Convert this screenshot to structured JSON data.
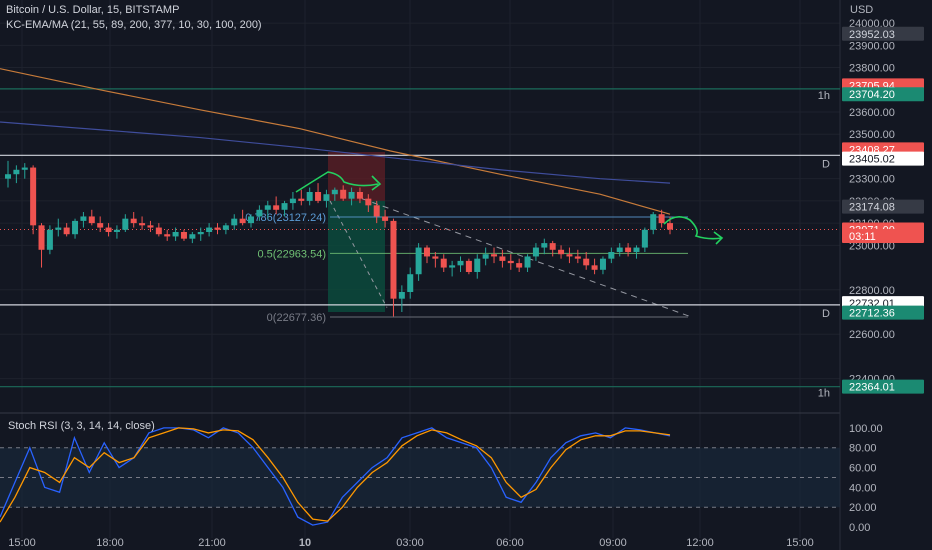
{
  "header": {
    "title": "Bitcoin / U.S. Dollar, 15, BITSTAMP",
    "indicator": "KC-EMA/MA (21, 55, 89, 200, 377, 10, 30, 100, 200)",
    "currency": "USD",
    "rsi_title": "Stoch RSI (3, 3, 14, 14, close)"
  },
  "colors": {
    "background": "#131722",
    "up": "#26a69a",
    "down": "#ef5350",
    "ma_orange": "#c77b3a",
    "ma_blue": "#3f4d9c",
    "arrow": "#23d160",
    "rsi_k": "#2962ff",
    "rsi_d": "#ff9800"
  },
  "chart_data": [
    {
      "type": "candlestick",
      "title": "Bitcoin / U.S. Dollar, 15, BITSTAMP",
      "ylim": [
        22250,
        24050
      ],
      "y_ticks": [
        22400,
        22600,
        22800,
        23000,
        23100,
        23200,
        23300,
        23500,
        23600,
        23800,
        23900,
        24000
      ],
      "y_tick_labels": [
        "22400.00",
        "22600.00",
        "22800.00",
        "23000.00",
        "23100.00",
        "23200.00",
        "23300.00",
        "23500.00",
        "23600.00",
        "23800.00",
        "23900.00",
        "24000.00"
      ],
      "x_ticks": [
        "15:00",
        "18:00",
        "21:00",
        "10",
        "03:00",
        "06:00",
        "09:00",
        "12:00",
        "15:00"
      ],
      "candles": [
        [
          23300,
          23380,
          23260,
          23320
        ],
        [
          23320,
          23360,
          23280,
          23340
        ],
        [
          23340,
          23370,
          23300,
          23350
        ],
        [
          23350,
          23360,
          23050,
          23090
        ],
        [
          23090,
          23100,
          22900,
          22980
        ],
        [
          22980,
          23090,
          22960,
          23070
        ],
        [
          23070,
          23120,
          23040,
          23080
        ],
        [
          23080,
          23100,
          23040,
          23050
        ],
        [
          23050,
          23120,
          23030,
          23110
        ],
        [
          23110,
          23150,
          23080,
          23130
        ],
        [
          23130,
          23160,
          23090,
          23100
        ],
        [
          23100,
          23130,
          23060,
          23080
        ],
        [
          23080,
          23100,
          23040,
          23060
        ],
        [
          23060,
          23090,
          23030,
          23070
        ],
        [
          23070,
          23140,
          23060,
          23120
        ],
        [
          23120,
          23150,
          23080,
          23100
        ],
        [
          23100,
          23130,
          23070,
          23090
        ],
        [
          23090,
          23110,
          23060,
          23080
        ],
        [
          23080,
          23100,
          23040,
          23050
        ],
        [
          23050,
          23070,
          23020,
          23040
        ],
        [
          23040,
          23080,
          23020,
          23060
        ],
        [
          23060,
          23070,
          23020,
          23030
        ],
        [
          23030,
          23060,
          23010,
          23050
        ],
        [
          23050,
          23080,
          23020,
          23060
        ],
        [
          23060,
          23100,
          23040,
          23080
        ],
        [
          23080,
          23100,
          23050,
          23070
        ],
        [
          23070,
          23100,
          23050,
          23090
        ],
        [
          23090,
          23140,
          23070,
          23120
        ],
        [
          23120,
          23160,
          23090,
          23100
        ],
        [
          23100,
          23140,
          23080,
          23130
        ],
        [
          23130,
          23180,
          23110,
          23160
        ],
        [
          23160,
          23200,
          23120,
          23180
        ],
        [
          23180,
          23220,
          23140,
          23160
        ],
        [
          23160,
          23200,
          23130,
          23190
        ],
        [
          23190,
          23240,
          23160,
          23210
        ],
        [
          23210,
          23250,
          23180,
          23200
        ],
        [
          23200,
          23260,
          23180,
          23240
        ],
        [
          23240,
          23280,
          23190,
          23200
        ],
        [
          23200,
          23250,
          23170,
          23230
        ],
        [
          23230,
          23260,
          23200,
          23250
        ],
        [
          23250,
          23270,
          23200,
          23210
        ],
        [
          23210,
          23260,
          23180,
          23240
        ],
        [
          23240,
          23260,
          23190,
          23210
        ],
        [
          23210,
          23230,
          23150,
          23180
        ],
        [
          23180,
          23200,
          23100,
          23130
        ],
        [
          23130,
          23160,
          23080,
          23110
        ],
        [
          23110,
          23120,
          22680,
          22760
        ],
        [
          22760,
          22820,
          22700,
          22790
        ],
        [
          22790,
          22900,
          22760,
          22870
        ],
        [
          22870,
          23010,
          22840,
          22990
        ],
        [
          22990,
          23000,
          22920,
          22950
        ],
        [
          22950,
          22970,
          22900,
          22940
        ],
        [
          22940,
          22960,
          22880,
          22900
        ],
        [
          22900,
          22930,
          22860,
          22910
        ],
        [
          22910,
          22950,
          22880,
          22930
        ],
        [
          22930,
          22940,
          22870,
          22880
        ],
        [
          22880,
          22960,
          22850,
          22940
        ],
        [
          22940,
          22990,
          22910,
          22960
        ],
        [
          22960,
          22990,
          22920,
          22950
        ],
        [
          22950,
          22980,
          22900,
          22930
        ],
        [
          22930,
          22960,
          22890,
          22920
        ],
        [
          22920,
          22940,
          22880,
          22900
        ],
        [
          22900,
          22960,
          22880,
          22950
        ],
        [
          22950,
          23010,
          22930,
          22990
        ],
        [
          22990,
          23030,
          22960,
          23010
        ],
        [
          23010,
          23020,
          22950,
          22980
        ],
        [
          22980,
          23000,
          22940,
          22960
        ],
        [
          22960,
          22990,
          22920,
          22950
        ],
        [
          22950,
          22980,
          22920,
          22940
        ],
        [
          22940,
          22970,
          22890,
          22910
        ],
        [
          22910,
          22940,
          22870,
          22890
        ],
        [
          22890,
          22950,
          22870,
          22940
        ],
        [
          22940,
          22990,
          22920,
          22970
        ],
        [
          22970,
          23010,
          22950,
          22990
        ],
        [
          22990,
          23010,
          22950,
          22970
        ],
        [
          22970,
          23000,
          22940,
          22990
        ],
        [
          22990,
          23080,
          22970,
          23070
        ],
        [
          23070,
          23150,
          23050,
          23140
        ],
        [
          23140,
          23160,
          23080,
          23100
        ],
        [
          23100,
          23130,
          23050,
          23071
        ]
      ],
      "moving_averages": [
        {
          "color": "#c77b3a",
          "points": [
            [
              0,
              23795
            ],
            [
              100,
              23700
            ],
            [
              200,
              23610
            ],
            [
              300,
              23525
            ],
            [
              390,
              23425
            ],
            [
              500,
              23320
            ],
            [
              600,
              23230
            ],
            [
              670,
              23140
            ]
          ]
        },
        {
          "color": "#3f4d9c",
          "points": [
            [
              0,
              23555
            ],
            [
              100,
              23520
            ],
            [
              200,
              23485
            ],
            [
              300,
              23440
            ],
            [
              400,
              23390
            ],
            [
              500,
              23340
            ],
            [
              600,
              23300
            ],
            [
              670,
              23280
            ]
          ]
        }
      ],
      "horizontal_levels": [
        {
          "price": 23704.2,
          "label": "1h",
          "color": "#1b6b5a"
        },
        {
          "price": 23405.02,
          "label": "D",
          "color": "#d1d4dc"
        },
        {
          "price": 22732.01,
          "label": "D",
          "color": "#d1d4dc"
        },
        {
          "price": 22364.01,
          "label": "1h",
          "color": "#1b6b5a"
        }
      ],
      "fib_levels": [
        {
          "ratio_text": "0.786(23127.24)",
          "price": 23127.24,
          "color": "#5b9bd5"
        },
        {
          "ratio_text": "0.5(22963.54)",
          "price": 22963.54,
          "color": "#6fbf73"
        },
        {
          "ratio_text": "0(22677.36)",
          "price": 22677.36,
          "color": "#787b86"
        }
      ],
      "price_tags": [
        {
          "text": "23952.03",
          "price": 23952.03,
          "bg": "#363a45",
          "fg": "#d1d4dc"
        },
        {
          "text": "23705.94",
          "price": 23720,
          "bg": "#ef5350",
          "fg": "#ffffff"
        },
        {
          "text": "23704.20",
          "price": 23680,
          "bg": "#1b8a72",
          "fg": "#ffffff"
        },
        {
          "text": "23408.27",
          "price": 23432,
          "bg": "#ef5350",
          "fg": "#ffffff"
        },
        {
          "text": "23405.02",
          "price": 23390,
          "bg": "#ffffff",
          "fg": "#131722"
        },
        {
          "text": "23174.08",
          "price": 23174.08,
          "bg": "#363a45",
          "fg": "#d1d4dc"
        },
        {
          "text": "23071.00",
          "price": 23071,
          "bg": "#ef5350",
          "fg": "#ffffff"
        },
        {
          "text": "03:11",
          "price": 23042,
          "bg": "#ef5350",
          "fg": "#ffffff"
        },
        {
          "text": "22732.01",
          "price": 22740,
          "bg": "#ffffff",
          "fg": "#131722"
        },
        {
          "text": "22712.36",
          "price": 22697,
          "bg": "#1b8a72",
          "fg": "#ffffff"
        },
        {
          "text": "22364.01",
          "price": 22364.01,
          "bg": "#1b8a72",
          "fg": "#ffffff"
        }
      ]
    },
    {
      "type": "line",
      "title": "Stoch RSI (3, 3, 14, 14, close)",
      "ylim": [
        -5,
        110
      ],
      "y_ticks": [
        0,
        20,
        40,
        60,
        80,
        100
      ],
      "y_tick_labels": [
        "0.00",
        "20.00",
        "40.00",
        "60.00",
        "80.00",
        "100.00"
      ],
      "bands": [
        20,
        50,
        80
      ],
      "series": [
        {
          "color": "#2962ff",
          "values": [
            10,
            45,
            80,
            40,
            35,
            90,
            55,
            85,
            60,
            70,
            95,
            100,
            100,
            98,
            90,
            100,
            95,
            80,
            60,
            40,
            10,
            2,
            5,
            30,
            45,
            60,
            70,
            90,
            95,
            100,
            90,
            85,
            80,
            60,
            30,
            25,
            45,
            70,
            85,
            92,
            95,
            90,
            100,
            98,
            95,
            92
          ]
        },
        {
          "color": "#ff9800",
          "values": [
            5,
            30,
            60,
            55,
            45,
            70,
            60,
            75,
            65,
            70,
            90,
            95,
            100,
            99,
            95,
            98,
            97,
            88,
            70,
            50,
            25,
            8,
            6,
            20,
            40,
            55,
            65,
            82,
            92,
            98,
            95,
            88,
            82,
            70,
            45,
            30,
            38,
            60,
            78,
            88,
            92,
            92,
            97,
            97,
            95,
            93
          ]
        }
      ]
    }
  ]
}
